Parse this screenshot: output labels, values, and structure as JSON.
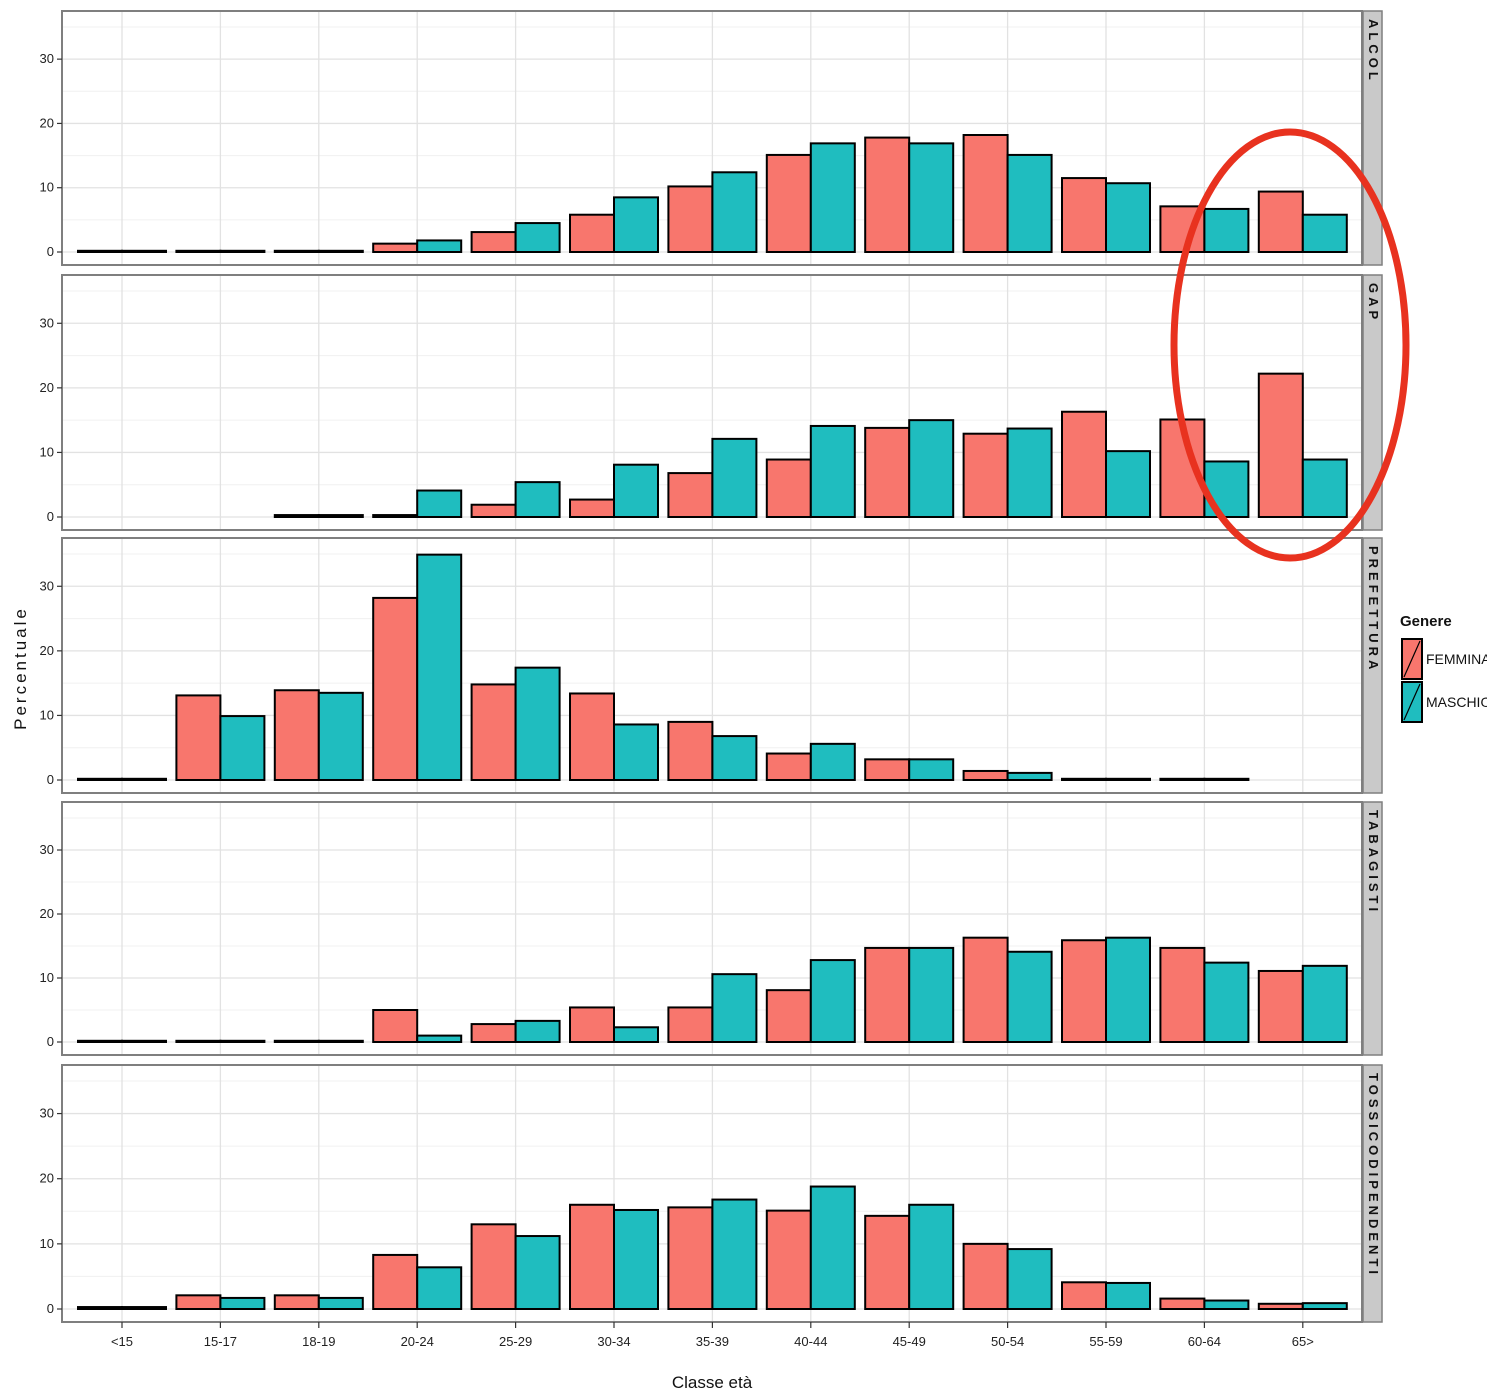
{
  "chart_data": {
    "type": "bar",
    "xlabel": "Classe età",
    "ylabel": "Percentuale",
    "ylim": [
      0,
      35
    ],
    "yticks": [
      0,
      10,
      20,
      30
    ],
    "grid": true,
    "legend": {
      "title": "Genere",
      "position": "right",
      "entries": [
        {
          "name": "FEMMINA",
          "color": "#F8766D"
        },
        {
          "name": "MASCHIO",
          "color": "#1FBDBF"
        }
      ]
    },
    "categories": [
      "<15",
      "15-17",
      "18-19",
      "20-24",
      "25-29",
      "30-34",
      "35-39",
      "40-44",
      "45-49",
      "50-54",
      "55-59",
      "60-64",
      "65>"
    ],
    "facets": [
      {
        "label": "ALCOL",
        "series": [
          {
            "name": "FEMMINA",
            "values": [
              0,
              0,
              0,
              1.3,
              3.1,
              5.8,
              10.2,
              15.1,
              17.8,
              18.2,
              11.5,
              7.1,
              9.4
            ]
          },
          {
            "name": "MASCHIO",
            "values": [
              0,
              0,
              0,
              1.8,
              4.5,
              8.5,
              12.4,
              16.9,
              16.9,
              15.1,
              10.7,
              6.7,
              5.8
            ]
          }
        ]
      },
      {
        "label": "GAP",
        "series": [
          {
            "name": "FEMMINA",
            "values": [
              null,
              null,
              0.3,
              0.3,
              1.9,
              2.7,
              6.8,
              8.9,
              13.8,
              12.9,
              16.3,
              15.1,
              22.2
            ]
          },
          {
            "name": "MASCHIO",
            "values": [
              null,
              null,
              0.3,
              4.1,
              5.4,
              8.1,
              12.1,
              14.1,
              15.0,
              13.7,
              10.2,
              8.6,
              8.9
            ]
          }
        ]
      },
      {
        "label": "PREFETTURA",
        "series": [
          {
            "name": "FEMMINA",
            "values": [
              0,
              13.1,
              13.9,
              28.2,
              14.8,
              13.4,
              9.0,
              4.1,
              3.2,
              1.4,
              0.1,
              0.1,
              null
            ]
          },
          {
            "name": "MASCHIO",
            "values": [
              0,
              9.9,
              13.5,
              34.9,
              17.4,
              8.6,
              6.8,
              5.6,
              3.2,
              1.1,
              0.1,
              0.1,
              null
            ]
          }
        ]
      },
      {
        "label": "TABAGISTI",
        "series": [
          {
            "name": "FEMMINA",
            "values": [
              0,
              0,
              0,
              5.0,
              2.8,
              5.4,
              5.4,
              8.1,
              14.7,
              16.3,
              15.9,
              14.7,
              11.1
            ]
          },
          {
            "name": "MASCHIO",
            "values": [
              0,
              0,
              0,
              1.0,
              3.3,
              2.3,
              10.6,
              12.8,
              14.7,
              14.1,
              16.3,
              12.4,
              11.9
            ]
          }
        ]
      },
      {
        "label": "TOSSICODIPENDENTI",
        "series": [
          {
            "name": "FEMMINA",
            "values": [
              0.3,
              2.1,
              2.1,
              8.3,
              13.0,
              16.0,
              15.6,
              15.1,
              14.3,
              10.0,
              4.1,
              1.6,
              0.8
            ]
          },
          {
            "name": "MASCHIO",
            "values": [
              0.3,
              1.7,
              1.7,
              6.4,
              11.2,
              15.2,
              16.8,
              18.8,
              16.0,
              9.2,
              4.0,
              1.3,
              0.9
            ]
          }
        ]
      }
    ]
  }
}
